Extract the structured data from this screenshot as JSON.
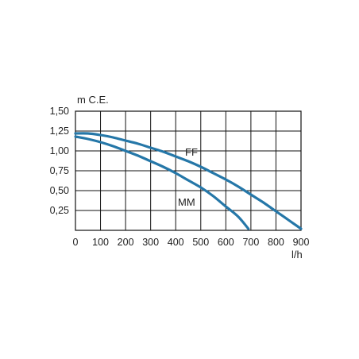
{
  "chart_data": {
    "type": "line",
    "xlabel": "l/h",
    "ylabel": "m C.E.",
    "xlim": [
      0,
      900
    ],
    "ylim": [
      0,
      1.5
    ],
    "x_ticks": [
      0,
      100,
      200,
      300,
      400,
      500,
      600,
      700,
      800,
      900
    ],
    "x_tick_labels": [
      "0",
      "100",
      "200",
      "300",
      "400",
      "500",
      "600",
      "700",
      "800",
      "900"
    ],
    "y_ticks": [
      0.25,
      0.5,
      0.75,
      1.0,
      1.25,
      1.5
    ],
    "y_tick_labels": [
      "0,25",
      "0,50",
      "0,75",
      "1,00",
      "1,25",
      "1,50"
    ],
    "grid": true,
    "line_color": "#2577a8",
    "series": [
      {
        "name": "FF",
        "x": [
          0,
          50,
          100,
          150,
          200,
          250,
          300,
          350,
          400,
          450,
          500,
          550,
          600,
          650,
          700,
          750,
          800,
          850,
          900
        ],
        "y": [
          1.22,
          1.22,
          1.2,
          1.17,
          1.13,
          1.09,
          1.04,
          0.99,
          0.93,
          0.87,
          0.8,
          0.72,
          0.64,
          0.55,
          0.45,
          0.35,
          0.24,
          0.13,
          0.02
        ]
      },
      {
        "name": "MM",
        "x": [
          0,
          50,
          100,
          150,
          200,
          250,
          300,
          350,
          400,
          450,
          500,
          550,
          600,
          650,
          690
        ],
        "y": [
          1.18,
          1.15,
          1.11,
          1.06,
          1.0,
          0.94,
          0.87,
          0.8,
          0.72,
          0.63,
          0.54,
          0.43,
          0.3,
          0.17,
          0.02
        ]
      }
    ]
  }
}
